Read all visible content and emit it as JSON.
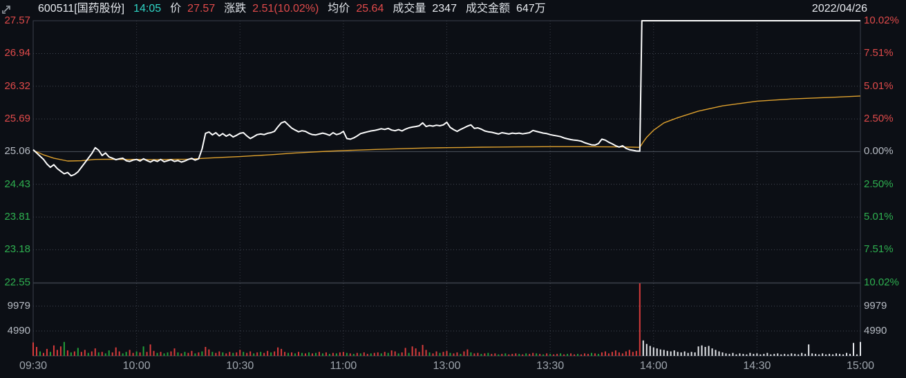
{
  "header": {
    "symbol": "600511[国药股份]",
    "time": "14:05",
    "price_label": "价",
    "price": "27.57",
    "change_label": "涨跌",
    "change": "2.51(10.02%)",
    "avg_label": "均价",
    "avg": "25.64",
    "volume_label": "成交量",
    "volume": "2347",
    "turnover_label": "成交金额",
    "turnover": "647万",
    "date": "2022/04/26"
  },
  "colors": {
    "up_red": "#e04a4a",
    "down_green": "#2eb050",
    "neutral_gray": "#b7bcc4",
    "time_gray": "#9fa6ae",
    "cyan": "#2fd6c6",
    "avg_line_yellow": "#e0a22e",
    "price_line_white": "#ffffff",
    "vol_bar_red": "#d93c3c",
    "vol_bar_green": "#22a03a",
    "vol_bar_white": "#e8eaee",
    "background": "#0c0f15"
  },
  "chart_data": {
    "type": "line",
    "title": "600511 国药股份 intraday time-share chart, limit-up day",
    "date": "2022/04/26",
    "prev_close": 25.06,
    "ylim_pct": [
      -10.02,
      10.02
    ],
    "grid": "dotted",
    "price_axis": [
      {
        "label": "27.57",
        "role": "up"
      },
      {
        "label": "26.94",
        "role": "up"
      },
      {
        "label": "26.32",
        "role": "up"
      },
      {
        "label": "25.69",
        "role": "up"
      },
      {
        "label": "25.06",
        "role": "flat"
      },
      {
        "label": "24.43",
        "role": "down"
      },
      {
        "label": "23.81",
        "role": "down"
      },
      {
        "label": "23.18",
        "role": "down"
      },
      {
        "label": "22.55",
        "role": "down"
      }
    ],
    "pct_axis": [
      {
        "label": "10.02%",
        "pct": 10.02,
        "role": "up"
      },
      {
        "label": "7.51%",
        "pct": 7.51,
        "role": "up"
      },
      {
        "label": "5.01%",
        "pct": 5.01,
        "role": "up"
      },
      {
        "label": "2.50%",
        "pct": 2.5,
        "role": "up"
      },
      {
        "label": "0.00%",
        "pct": 0.0,
        "role": "flat"
      },
      {
        "label": "2.50%",
        "pct": -2.5,
        "role": "down"
      },
      {
        "label": "5.01%",
        "pct": -5.01,
        "role": "down"
      },
      {
        "label": "7.51%",
        "pct": -7.51,
        "role": "down"
      },
      {
        "label": "10.02%",
        "pct": -10.02,
        "role": "down"
      }
    ],
    "volume_axis": [
      {
        "label": "9979",
        "value": 9979
      },
      {
        "label": "4990",
        "value": 4990
      }
    ],
    "time_axis": [
      "09:30",
      "10:00",
      "10:30",
      "11:00",
      "13:00",
      "13:30",
      "14:00",
      "14:30",
      "15:00"
    ],
    "minutes_total": 240,
    "series": [
      {
        "name": "price_pct_change",
        "color": "#ffffff",
        "pct_by_minute": [
          0.15,
          -0.1,
          -0.35,
          -0.6,
          -0.95,
          -1.2,
          -1.0,
          -1.3,
          -1.5,
          -1.7,
          -1.6,
          -1.85,
          -1.75,
          -1.55,
          -1.2,
          -0.85,
          -0.5,
          -0.15,
          0.3,
          0.1,
          -0.3,
          -0.1,
          -0.4,
          -0.5,
          -0.62,
          -0.55,
          -0.5,
          -0.7,
          -0.75,
          -0.65,
          -0.6,
          -0.72,
          -0.55,
          -0.68,
          -0.8,
          -0.65,
          -0.75,
          -0.6,
          -0.78,
          -0.7,
          -0.62,
          -0.75,
          -0.68,
          -0.8,
          -0.72,
          -0.6,
          -0.52,
          -0.65,
          -0.55,
          0.2,
          1.4,
          1.5,
          1.28,
          1.45,
          1.2,
          1.38,
          1.18,
          1.32,
          1.12,
          1.25,
          1.4,
          1.45,
          1.2,
          1.0,
          1.15,
          1.3,
          1.35,
          1.3,
          1.4,
          1.45,
          1.55,
          1.9,
          2.2,
          2.3,
          2.05,
          1.8,
          1.65,
          1.52,
          1.6,
          1.55,
          1.4,
          1.3,
          1.28,
          1.35,
          1.42,
          1.35,
          1.25,
          1.45,
          1.3,
          1.38,
          1.55,
          1.0,
          0.95,
          1.05,
          1.2,
          1.38,
          1.45,
          1.52,
          1.58,
          1.62,
          1.68,
          1.75,
          1.7,
          1.78,
          1.65,
          1.6,
          1.68,
          1.58,
          1.72,
          1.82,
          1.88,
          1.92,
          1.98,
          2.2,
          1.92,
          2.0,
          1.95,
          2.02,
          1.98,
          2.05,
          2.25,
          1.85,
          1.68,
          1.55,
          1.7,
          1.82,
          1.95,
          2.05,
          1.78,
          1.82,
          1.72,
          1.58,
          1.52,
          1.48,
          1.42,
          1.35,
          1.45,
          1.4,
          1.35,
          1.42,
          1.38,
          1.42,
          1.36,
          1.4,
          1.45,
          1.62,
          1.55,
          1.48,
          1.42,
          1.38,
          1.3,
          1.25,
          1.2,
          1.15,
          1.05,
          0.98,
          0.92,
          0.88,
          0.85,
          0.8,
          0.68,
          0.6,
          0.52,
          0.5,
          0.62,
          0.95,
          0.88,
          0.72,
          0.6,
          0.45,
          0.35,
          0.45,
          0.25,
          0.15,
          0.1,
          0.05,
          0.03
        ],
        "limit_up_flat": {
          "from_minute": 177,
          "to_minute": 240,
          "pct": 10.02
        }
      },
      {
        "name": "average_price_pct",
        "color": "#e0a22e",
        "points": [
          [
            0,
            0.1
          ],
          [
            3,
            -0.25
          ],
          [
            6,
            -0.5
          ],
          [
            10,
            -0.72
          ],
          [
            14,
            -0.7
          ],
          [
            18,
            -0.6
          ],
          [
            22,
            -0.58
          ],
          [
            26,
            -0.6
          ],
          [
            30,
            -0.6
          ],
          [
            35,
            -0.62
          ],
          [
            40,
            -0.6
          ],
          [
            45,
            -0.58
          ],
          [
            50,
            -0.5
          ],
          [
            55,
            -0.44
          ],
          [
            60,
            -0.38
          ],
          [
            65,
            -0.3
          ],
          [
            70,
            -0.22
          ],
          [
            75,
            -0.12
          ],
          [
            80,
            -0.05
          ],
          [
            85,
            0.02
          ],
          [
            90,
            0.08
          ],
          [
            95,
            0.12
          ],
          [
            100,
            0.17
          ],
          [
            105,
            0.21
          ],
          [
            110,
            0.25
          ],
          [
            115,
            0.28
          ],
          [
            120,
            0.3
          ],
          [
            125,
            0.32
          ],
          [
            130,
            0.34
          ],
          [
            135,
            0.35
          ],
          [
            140,
            0.36
          ],
          [
            145,
            0.37
          ],
          [
            150,
            0.38
          ],
          [
            155,
            0.38
          ],
          [
            160,
            0.38
          ],
          [
            165,
            0.37
          ],
          [
            170,
            0.36
          ],
          [
            174,
            0.34
          ],
          [
            176,
            0.33
          ],
          [
            177,
            0.74
          ],
          [
            178,
            1.1
          ],
          [
            180,
            1.64
          ],
          [
            183,
            2.2
          ],
          [
            187,
            2.6
          ],
          [
            193,
            3.1
          ],
          [
            200,
            3.5
          ],
          [
            210,
            3.86
          ],
          [
            220,
            4.03
          ],
          [
            233,
            4.17
          ],
          [
            240,
            4.26
          ]
        ]
      }
    ],
    "volume": {
      "values": [
        2700,
        1800,
        900,
        600,
        1400,
        800,
        2100,
        1200,
        1900,
        2800,
        1100,
        700,
        900,
        1600,
        800,
        1200,
        600,
        900,
        1500,
        700,
        800,
        500,
        1100,
        700,
        1700,
        900,
        500,
        800,
        1200,
        600,
        900,
        700,
        1900,
        800,
        2300,
        1000,
        600,
        800,
        500,
        700,
        900,
        1500,
        700,
        500,
        800,
        600,
        1000,
        500,
        700,
        900,
        1800,
        1300,
        800,
        600,
        900,
        700,
        500,
        800,
        600,
        700,
        1200,
        800,
        600,
        900,
        500,
        700,
        800,
        600,
        1000,
        700,
        900,
        1700,
        1400,
        800,
        600,
        700,
        500,
        800,
        600,
        500,
        700,
        500,
        600,
        800,
        500,
        700,
        400,
        600,
        500,
        700,
        800,
        600,
        500,
        400,
        600,
        500,
        700,
        400,
        500,
        600,
        700,
        500,
        800,
        600,
        1100,
        900,
        500,
        700,
        1600,
        600,
        1900,
        1500,
        800,
        2200,
        1200,
        700,
        500,
        900,
        600,
        800,
        1000,
        600,
        500,
        700,
        400,
        900,
        1300,
        700,
        500,
        600,
        400,
        500,
        600,
        400,
        500,
        300,
        400,
        500,
        300,
        400,
        500,
        400,
        300,
        500,
        400,
        600,
        500,
        400,
        300,
        500,
        400,
        300,
        400,
        500,
        300,
        400,
        500,
        300,
        400,
        300,
        500,
        400,
        600,
        500,
        400,
        700,
        900,
        500,
        800,
        1100,
        700,
        500,
        900,
        1200,
        800,
        1000,
        15500,
        3100,
        2400,
        2000,
        1700,
        1500,
        1300,
        1200,
        1000,
        900,
        1100,
        800,
        700,
        900,
        600,
        800,
        700,
        1900,
        2100,
        1800,
        2000,
        1500,
        1200,
        900,
        700,
        500,
        400,
        600,
        300,
        500,
        400,
        300,
        600,
        400,
        500,
        300,
        400,
        600,
        300,
        400,
        500,
        300,
        400,
        300,
        500,
        400,
        300,
        600,
        400,
        2300,
        500,
        400,
        300,
        500,
        300,
        400,
        300,
        500,
        400,
        300,
        600,
        400,
        2600,
        300,
        2800
      ],
      "colors": "rrgrrgrrrgrgrgrrgrrgrggrrrggrrgrgrrrgrggrrgrgrrgrgrrgrrgrrgrrgrrgrgrrgrrrrgrgrgrgrgrgrgrgrrgrgrgrrgrrgrgrrgrrgrrrrrgrrgrrgrrgrrgrrgrgrrgrgrrrgrgrrgrgrgrrgrgrrgrrrgrgrrrrrrrrrrrrwwwwwwwwwwwwwwwwwwwwwwwwwwwwwwwwwwwwwwwwwwwwwwwwwwwwwwwwwwwwwwww"
    }
  }
}
